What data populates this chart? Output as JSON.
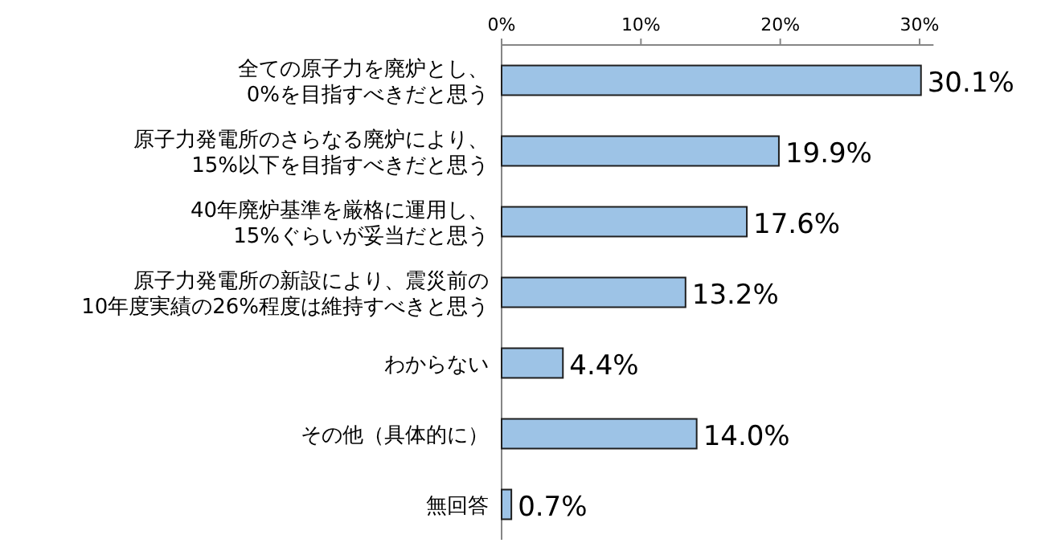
{
  "chart_data": {
    "type": "bar",
    "orientation": "horizontal",
    "categories": [
      "全ての原子力を廃炉とし、\n0%を目指すべきだと思う",
      "原子力発電所のさらなる廃炉により、\n15%以下を目指すべきだと思う",
      "40年廃炉基準を厳格に運用し、\n15%ぐらいが妥当だと思う",
      "原子力発電所の新設により、震災前の\n10年度実績の26%程度は維持すべきと思う",
      "わからない",
      "その他（具体的に）",
      "無回答"
    ],
    "values": [
      30.1,
      19.9,
      17.6,
      13.2,
      4.4,
      14.0,
      0.7
    ],
    "value_labels": [
      "30.1%",
      "19.9%",
      "17.6%",
      "13.2%",
      "4.4%",
      "14.0%",
      "0.7%"
    ],
    "color": "#9dc3e6",
    "xlim": [
      0,
      31
    ],
    "xticks": [
      {
        "value": 0,
        "label": "0%"
      },
      {
        "value": 10,
        "label": "10%"
      },
      {
        "value": 20,
        "label": "20%"
      },
      {
        "value": 30,
        "label": "30%"
      }
    ],
    "grid": false
  }
}
